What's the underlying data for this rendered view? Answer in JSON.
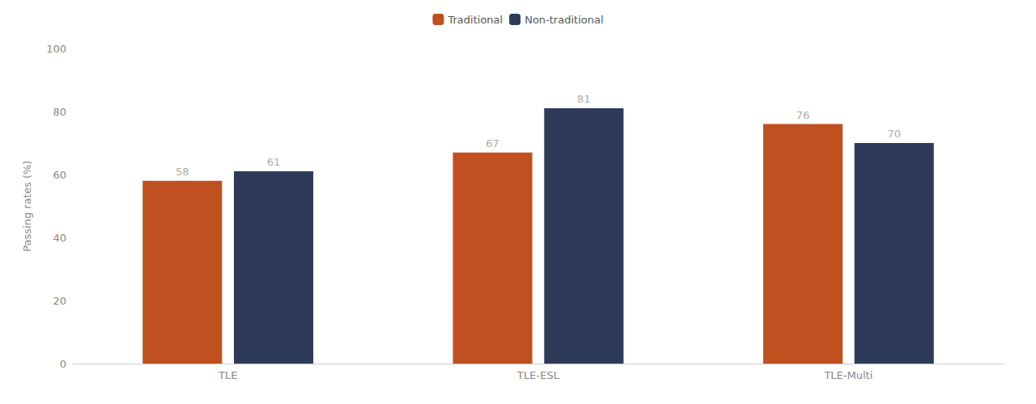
{
  "chart_data": {
    "type": "bar",
    "categories": [
      "TLE",
      "TLE-ESL",
      "TLE-Multi"
    ],
    "series": [
      {
        "name": "Traditional",
        "color": "#C0501F",
        "values": [
          58,
          67,
          76
        ]
      },
      {
        "name": "Non-traditional",
        "color": "#2E3A59",
        "values": [
          61,
          81,
          70
        ]
      }
    ],
    "ylabel": "Passing rates (%)",
    "ylim": [
      0,
      100
    ],
    "yticks": [
      0,
      20,
      40,
      60,
      80,
      100
    ],
    "grid": false,
    "legend": "top",
    "data_labels": true
  }
}
